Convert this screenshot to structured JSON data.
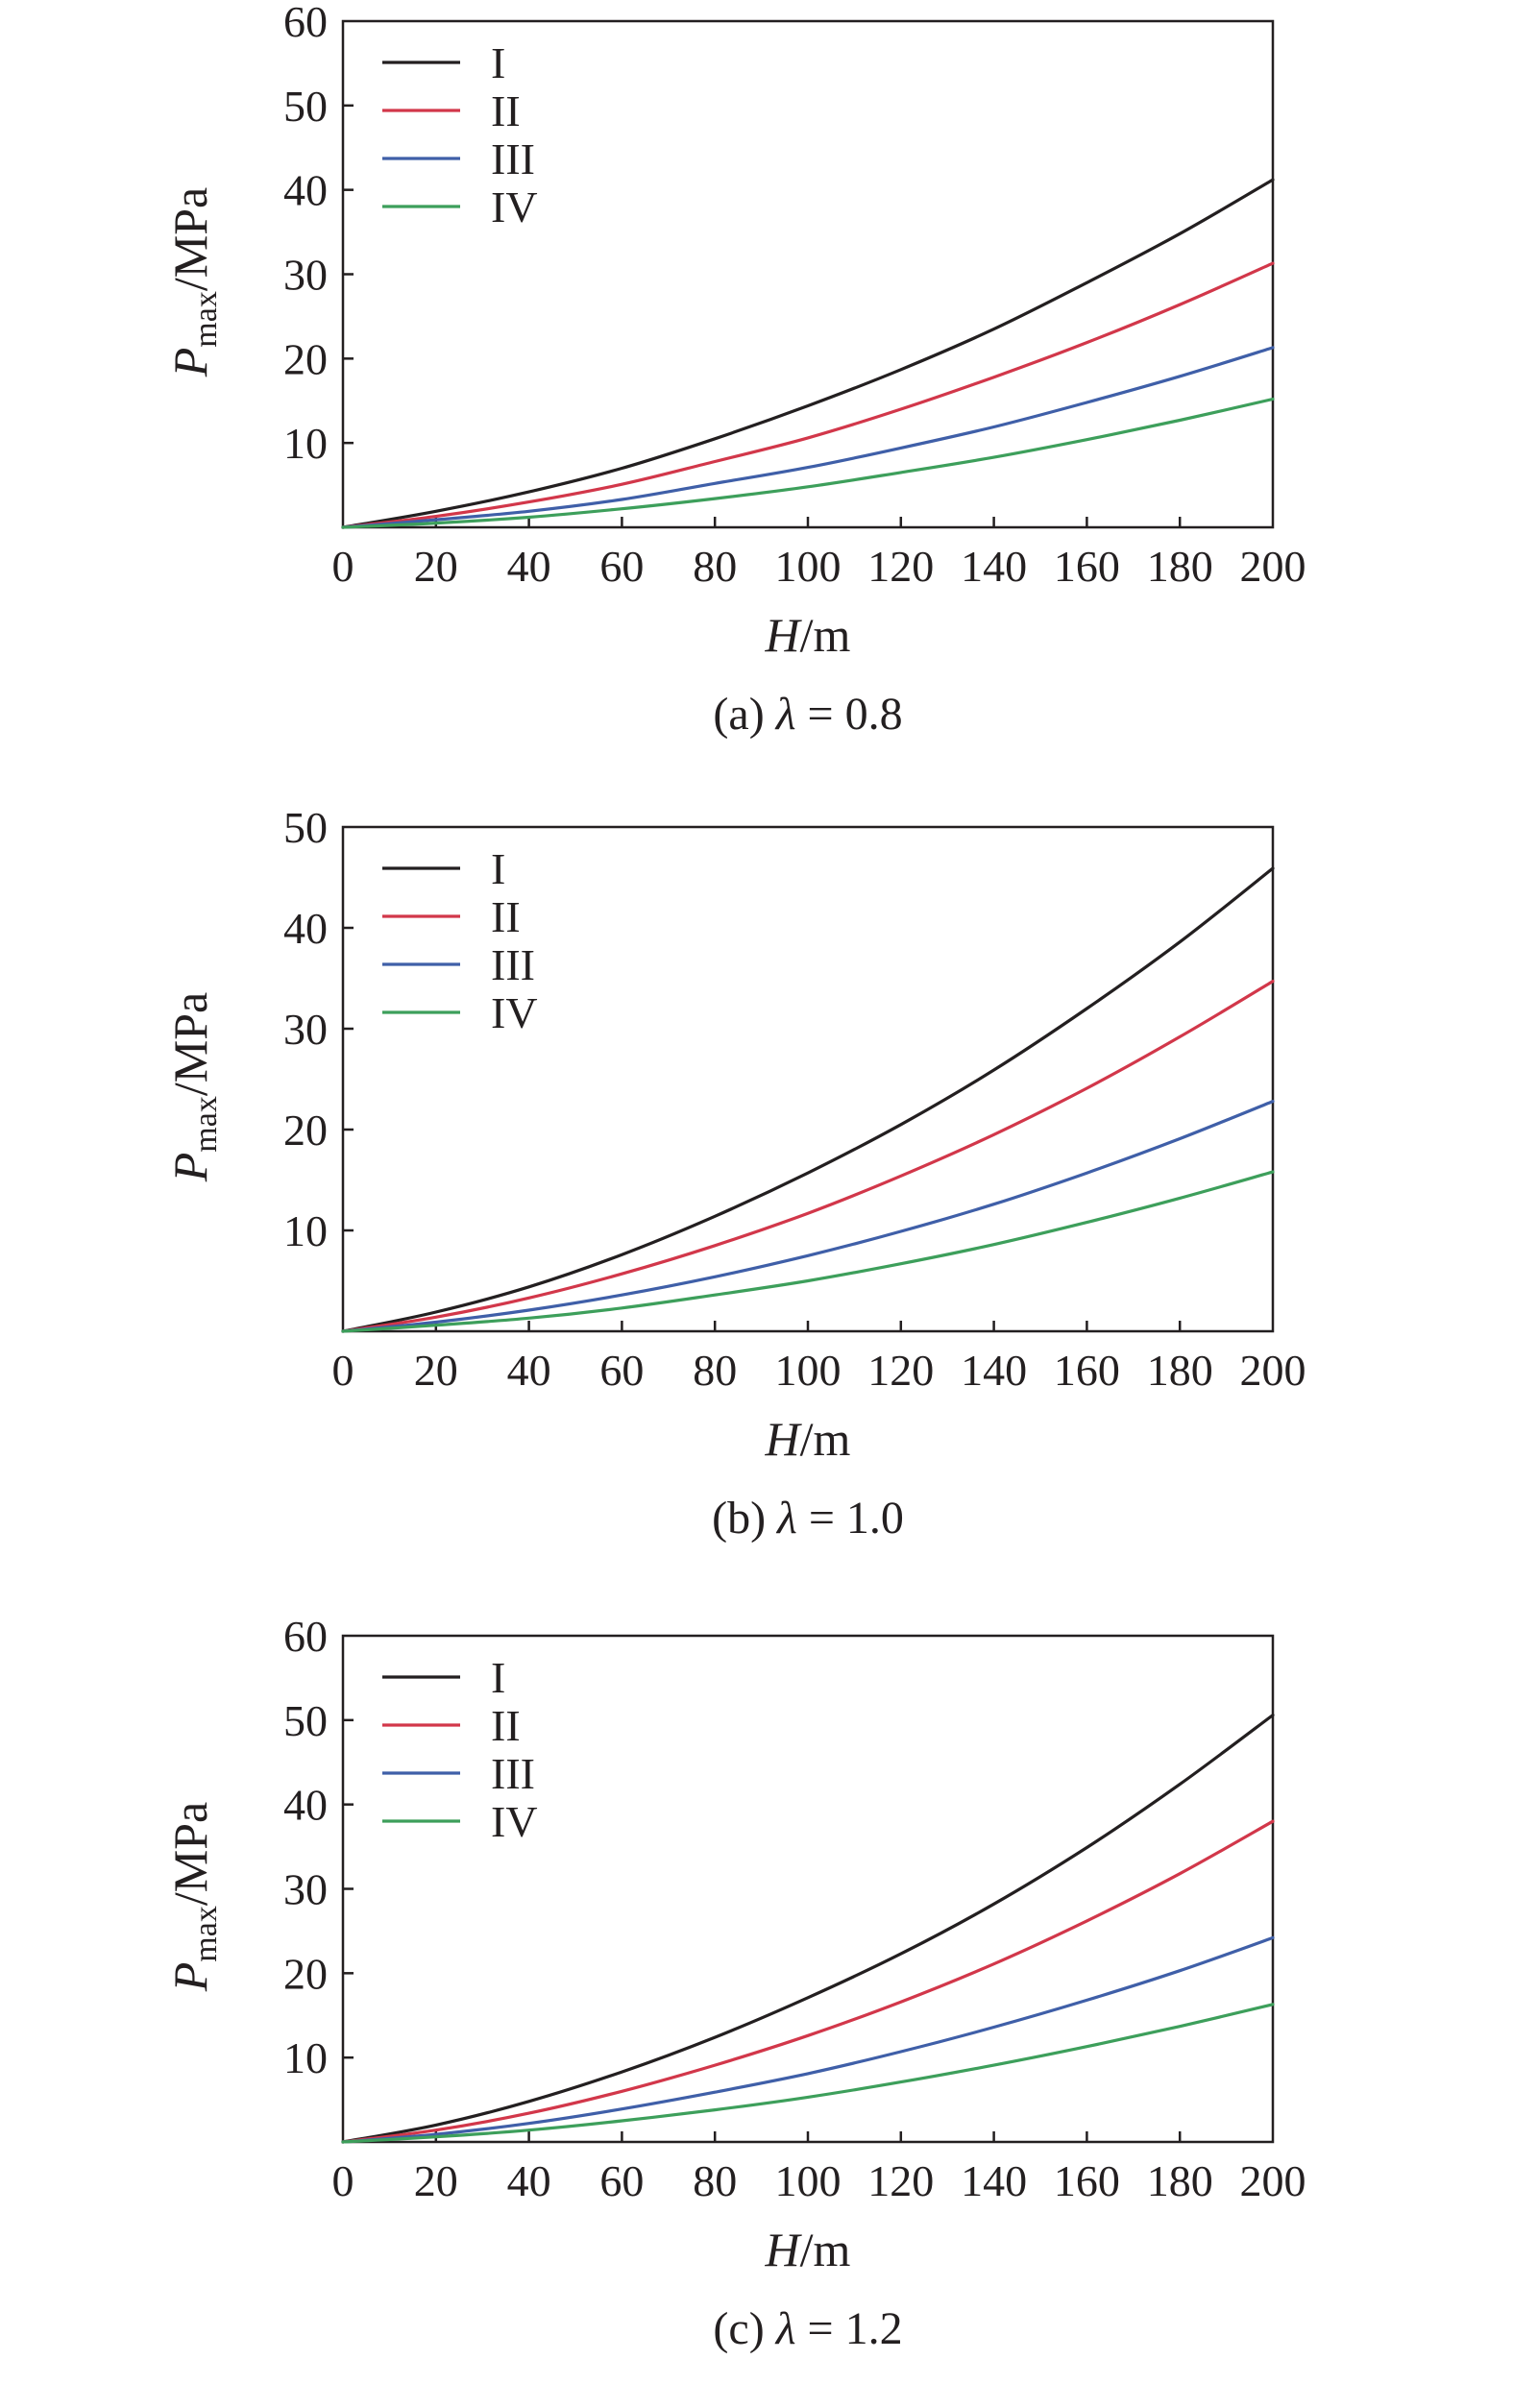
{
  "chart_data": [
    {
      "type": "line",
      "caption_prefix": "(a) ",
      "caption_symbol": "λ",
      "caption_suffix": " = 0.8",
      "xlabel_var": "H",
      "xlabel_unit": "/m",
      "ylabel_var": "P",
      "ylabel_sub": "max",
      "ylabel_unit": "/MPa",
      "xlim": [
        0,
        200
      ],
      "ylim": [
        0,
        60
      ],
      "xticks": [
        0,
        20,
        40,
        60,
        80,
        100,
        120,
        140,
        160,
        180,
        200
      ],
      "yticks": [
        10,
        20,
        30,
        40,
        50,
        60
      ],
      "legend_position": "top-left",
      "x": [
        0,
        20,
        40,
        60,
        80,
        100,
        120,
        140,
        160,
        180,
        200
      ],
      "series": [
        {
          "name": "I",
          "color": "#231f20",
          "values": [
            0,
            1.9,
            4.2,
            7.0,
            10.5,
            14.4,
            18.7,
            23.5,
            29.0,
            34.8,
            41.2
          ]
        },
        {
          "name": "II",
          "color": "#d2374a",
          "values": [
            0,
            1.3,
            3.0,
            5.1,
            7.8,
            10.6,
            14.0,
            17.8,
            21.9,
            26.4,
            31.3
          ]
        },
        {
          "name": "III",
          "color": "#3f5fa8",
          "values": [
            0,
            0.9,
            1.9,
            3.3,
            5.2,
            7.1,
            9.4,
            11.9,
            14.8,
            17.9,
            21.3
          ]
        },
        {
          "name": "IV",
          "color": "#3d9f5b",
          "values": [
            0,
            0.5,
            1.2,
            2.2,
            3.4,
            4.8,
            6.5,
            8.3,
            10.4,
            12.7,
            15.2
          ]
        }
      ]
    },
    {
      "type": "line",
      "caption_prefix": "(b) ",
      "caption_symbol": "λ",
      "caption_suffix": " = 1.0",
      "xlabel_var": "H",
      "xlabel_unit": "/m",
      "ylabel_var": "P",
      "ylabel_sub": "max",
      "ylabel_unit": "/MPa",
      "xlim": [
        0,
        200
      ],
      "ylim": [
        0,
        50
      ],
      "xticks": [
        0,
        20,
        40,
        60,
        80,
        100,
        120,
        140,
        160,
        180,
        200
      ],
      "yticks": [
        10,
        20,
        30,
        40,
        50
      ],
      "legend_position": "top-left",
      "x": [
        0,
        20,
        40,
        60,
        80,
        100,
        120,
        140,
        160,
        180,
        200
      ],
      "series": [
        {
          "name": "I",
          "color": "#231f20",
          "values": [
            0,
            1.9,
            4.4,
            7.6,
            11.4,
            15.7,
            20.5,
            25.9,
            32.0,
            38.6,
            45.9
          ]
        },
        {
          "name": "II",
          "color": "#d2374a",
          "values": [
            0,
            1.4,
            3.3,
            5.7,
            8.5,
            11.7,
            15.4,
            19.5,
            24.1,
            29.2,
            34.7
          ]
        },
        {
          "name": "III",
          "color": "#3f5fa8",
          "values": [
            0,
            0.9,
            2.1,
            3.6,
            5.4,
            7.5,
            9.9,
            12.6,
            15.7,
            19.1,
            22.8
          ]
        },
        {
          "name": "IV",
          "color": "#3d9f5b",
          "values": [
            0,
            0.6,
            1.3,
            2.3,
            3.6,
            5.0,
            6.7,
            8.6,
            10.8,
            13.2,
            15.8
          ]
        }
      ]
    },
    {
      "type": "line",
      "caption_prefix": "(c) ",
      "caption_symbol": "λ",
      "caption_suffix": " = 1.2",
      "xlabel_var": "H",
      "xlabel_unit": "/m",
      "ylabel_var": "P",
      "ylabel_sub": "max",
      "ylabel_unit": "/MPa",
      "xlim": [
        0,
        200
      ],
      "ylim": [
        0,
        60
      ],
      "xticks": [
        0,
        20,
        40,
        60,
        80,
        100,
        120,
        140,
        160,
        180,
        200
      ],
      "yticks": [
        10,
        20,
        30,
        40,
        50,
        60
      ],
      "legend_position": "top-left",
      "x": [
        0,
        20,
        40,
        60,
        80,
        100,
        120,
        140,
        160,
        180,
        200
      ],
      "series": [
        {
          "name": "I",
          "color": "#231f20",
          "values": [
            0,
            2.0,
            4.8,
            8.3,
            12.4,
            17.1,
            22.3,
            28.2,
            34.9,
            42.4,
            50.6
          ]
        },
        {
          "name": "II",
          "color": "#d2374a",
          "values": [
            0,
            1.4,
            3.4,
            6.0,
            9.1,
            12.6,
            16.6,
            21.1,
            26.2,
            31.8,
            38.0
          ]
        },
        {
          "name": "III",
          "color": "#3f5fa8",
          "values": [
            0,
            0.9,
            2.2,
            3.9,
            5.9,
            8.1,
            10.7,
            13.6,
            16.8,
            20.3,
            24.2
          ]
        },
        {
          "name": "IV",
          "color": "#3d9f5b",
          "values": [
            0,
            0.6,
            1.4,
            2.5,
            3.8,
            5.3,
            7.1,
            9.1,
            11.3,
            13.7,
            16.3
          ]
        }
      ]
    }
  ]
}
